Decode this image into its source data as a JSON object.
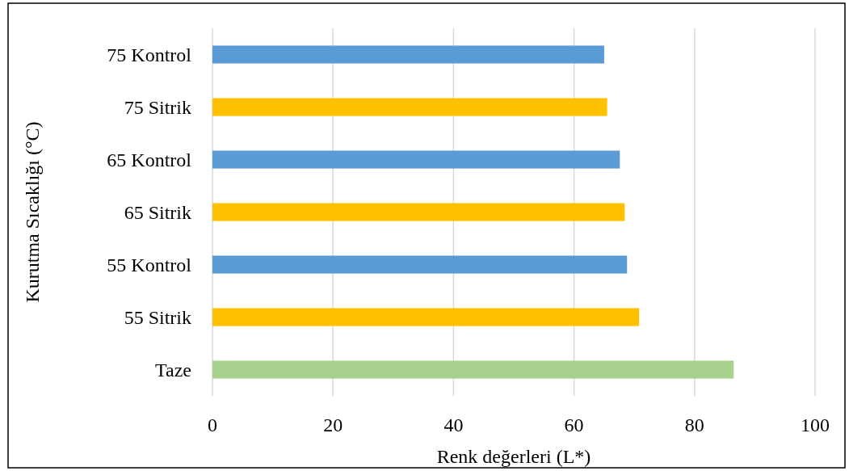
{
  "chart_data": {
    "type": "bar",
    "orientation": "horizontal",
    "xlabel": "Renk değerleri (L*)",
    "ylabel": "Kurutma Sıcaklığı (°C)",
    "categories": [
      "75 Kontrol",
      "75 Sitrik",
      "65 Kontrol",
      "65 Sitrik",
      "55 Kontrol",
      "55 Sitrik",
      "Taze"
    ],
    "values": [
      65.0,
      65.5,
      67.6,
      68.4,
      68.8,
      70.8,
      86.5
    ],
    "colors": [
      "#5b9bd5",
      "#ffc000",
      "#5b9bd5",
      "#ffc000",
      "#5b9bd5",
      "#ffc000",
      "#a9d18e"
    ],
    "xlim": [
      0,
      100
    ],
    "xticks": [
      0,
      20,
      40,
      60,
      80,
      100
    ],
    "grid": "x"
  }
}
